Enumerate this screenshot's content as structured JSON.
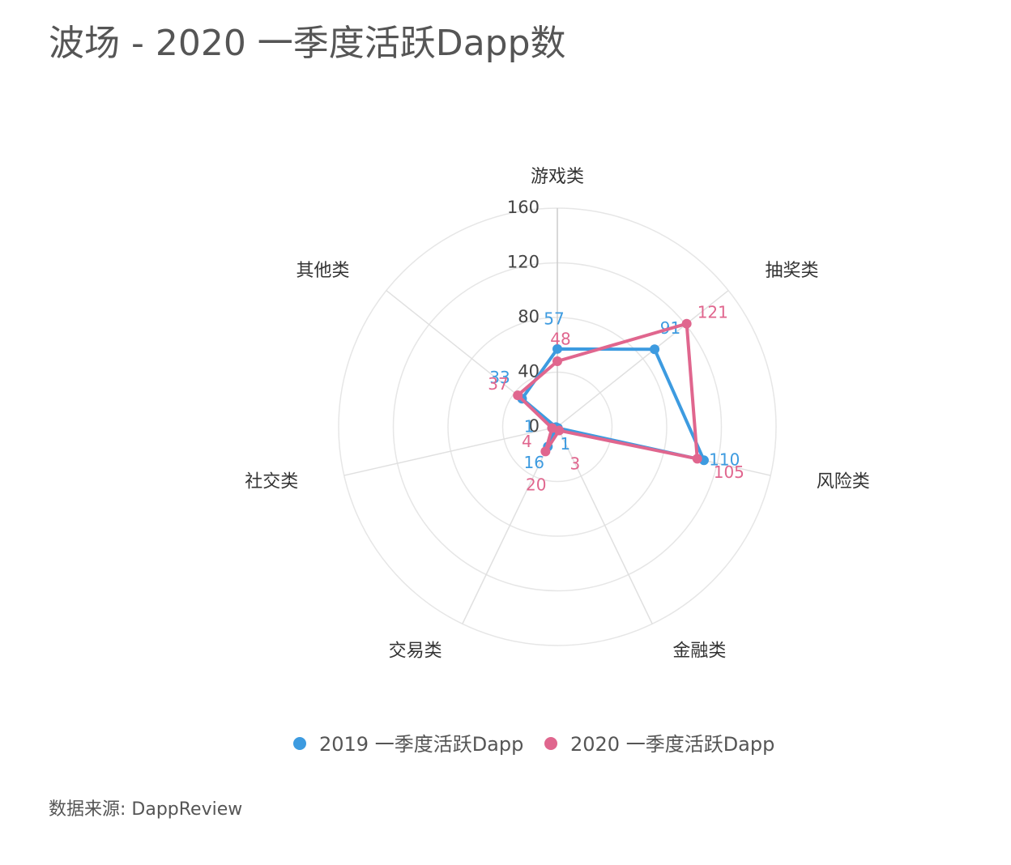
{
  "chart_data": {
    "type": "radar",
    "title": "波场 - 2020 一季度活跃Dapp数",
    "categories": [
      "游戏类",
      "抽奖类",
      "风险类",
      "金融类",
      "交易类",
      "社交类",
      "其他类"
    ],
    "series": [
      {
        "name": "2019 一季度活跃Dapp",
        "color": "#3d9be0",
        "values": [
          57,
          91,
          110,
          1,
          16,
          1,
          33
        ]
      },
      {
        "name": "2020 一季度活跃Dapp",
        "color": "#e0668e",
        "values": [
          48,
          121,
          105,
          3,
          20,
          4,
          37
        ]
      }
    ],
    "ylim": [
      0,
      160
    ],
    "yticks": [
      0,
      40,
      80,
      120,
      160
    ],
    "grid": true,
    "legend": "bottom",
    "source": "数据来源: DappReview"
  }
}
